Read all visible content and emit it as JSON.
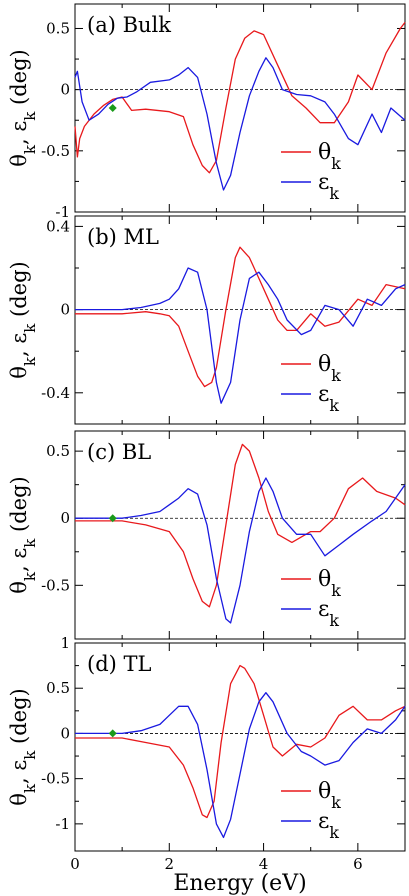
{
  "figure": {
    "xlabel": "Energy (eV)",
    "colors": {
      "theta": "#e8191c",
      "epsilon": "#1a1ae0",
      "marker": "#1a9a1a"
    }
  },
  "chart_data": [
    {
      "type": "line",
      "title": "(a)  Bulk",
      "ylabel": "θk, εk (deg)",
      "xlim": [
        0,
        7
      ],
      "ylim": [
        -1,
        0.7
      ],
      "xticks": [
        0,
        2,
        4,
        6
      ],
      "yticks": [
        -1,
        -0.5,
        0,
        0.5
      ],
      "ytick_labels": [
        "-1",
        "-0.5",
        "0",
        "0.5"
      ],
      "legend_position": "right",
      "series": [
        {
          "name": "θk",
          "color": "#e8191c",
          "x": [
            0,
            0.05,
            0.1,
            0.2,
            0.4,
            0.6,
            0.8,
            1.0,
            1.2,
            1.5,
            2.0,
            2.3,
            2.5,
            2.7,
            2.85,
            3.0,
            3.2,
            3.4,
            3.6,
            3.8,
            4.0,
            4.3,
            4.6,
            4.9,
            5.2,
            5.5,
            5.8,
            6.0,
            6.3,
            6.6,
            6.9,
            7.0
          ],
          "y": [
            -0.3,
            -0.55,
            -0.4,
            -0.3,
            -0.2,
            -0.13,
            -0.08,
            -0.06,
            -0.17,
            -0.16,
            -0.18,
            -0.22,
            -0.45,
            -0.62,
            -0.68,
            -0.58,
            -0.15,
            0.25,
            0.42,
            0.48,
            0.45,
            0.2,
            -0.05,
            -0.15,
            -0.27,
            -0.27,
            -0.1,
            0.12,
            0.0,
            0.3,
            0.5,
            0.55
          ]
        },
        {
          "name": "εk",
          "color": "#1a1ae0",
          "x": [
            0,
            0.05,
            0.15,
            0.3,
            0.5,
            0.7,
            0.9,
            1.1,
            1.3,
            1.6,
            2.0,
            2.2,
            2.4,
            2.6,
            2.8,
            3.0,
            3.15,
            3.3,
            3.5,
            3.7,
            3.9,
            4.05,
            4.2,
            4.4,
            4.7,
            5.0,
            5.3,
            5.5,
            5.8,
            6.0,
            6.3,
            6.5,
            6.7,
            7.0
          ],
          "y": [
            0.1,
            0.15,
            -0.1,
            -0.25,
            -0.2,
            -0.12,
            -0.07,
            -0.06,
            -0.02,
            0.06,
            0.08,
            0.12,
            0.18,
            0.1,
            -0.2,
            -0.6,
            -0.82,
            -0.7,
            -0.35,
            -0.05,
            0.15,
            0.26,
            0.18,
            0.0,
            -0.04,
            -0.05,
            -0.1,
            -0.2,
            -0.4,
            -0.45,
            -0.2,
            -0.35,
            -0.15,
            -0.25
          ]
        }
      ],
      "markers": [
        {
          "x": 0.8,
          "y": -0.15,
          "color": "#1a9a1a"
        }
      ]
    },
    {
      "type": "line",
      "title": "(b)  ML",
      "ylabel": "θk, εk (deg)",
      "xlim": [
        0,
        7
      ],
      "ylim": [
        -0.55,
        0.45
      ],
      "xticks": [
        0,
        2,
        4,
        6
      ],
      "yticks": [
        -0.4,
        0,
        0.4
      ],
      "ytick_labels": [
        "-0.4",
        "0",
        "0.4"
      ],
      "legend_position": "right",
      "series": [
        {
          "name": "θk",
          "color": "#e8191c",
          "x": [
            0,
            1.0,
            1.5,
            1.8,
            2.0,
            2.2,
            2.4,
            2.6,
            2.75,
            2.9,
            3.0,
            3.2,
            3.4,
            3.5,
            3.7,
            3.9,
            4.1,
            4.3,
            4.5,
            4.7,
            5.0,
            5.3,
            5.6,
            6.0,
            6.3,
            6.6,
            7.0
          ],
          "y": [
            -0.02,
            -0.02,
            -0.01,
            -0.02,
            -0.03,
            -0.08,
            -0.2,
            -0.32,
            -0.37,
            -0.35,
            -0.28,
            0.0,
            0.25,
            0.3,
            0.25,
            0.15,
            0.05,
            -0.05,
            -0.1,
            -0.1,
            -0.02,
            -0.08,
            -0.06,
            0.05,
            0.02,
            0.12,
            0.1
          ]
        },
        {
          "name": "εk",
          "color": "#1a1ae0",
          "x": [
            0,
            1.0,
            1.4,
            1.8,
            2.0,
            2.2,
            2.4,
            2.6,
            2.8,
            3.0,
            3.1,
            3.3,
            3.5,
            3.7,
            3.9,
            4.1,
            4.3,
            4.5,
            4.8,
            5.0,
            5.3,
            5.6,
            5.9,
            6.2,
            6.5,
            6.8,
            7.0
          ],
          "y": [
            0,
            0,
            0.01,
            0.03,
            0.05,
            0.1,
            0.2,
            0.18,
            0.0,
            -0.35,
            -0.45,
            -0.35,
            -0.05,
            0.15,
            0.18,
            0.12,
            0.05,
            -0.05,
            -0.12,
            -0.1,
            0.02,
            0.0,
            -0.08,
            0.05,
            0.02,
            0.1,
            0.12
          ]
        }
      ]
    },
    {
      "type": "line",
      "title": "(c)  BL",
      "ylabel": "θk, εk (deg)",
      "xlim": [
        0,
        7
      ],
      "ylim": [
        -0.9,
        0.65
      ],
      "xticks": [
        0,
        2,
        4,
        6
      ],
      "yticks": [
        -0.5,
        0,
        0.5
      ],
      "ytick_labels": [
        "-0.5",
        "0",
        "0.5"
      ],
      "legend_position": "right",
      "series": [
        {
          "name": "θk",
          "color": "#e8191c",
          "x": [
            0,
            1.0,
            1.5,
            2.0,
            2.3,
            2.5,
            2.7,
            2.85,
            3.0,
            3.2,
            3.4,
            3.55,
            3.7,
            3.9,
            4.1,
            4.3,
            4.6,
            5.0,
            5.2,
            5.5,
            5.8,
            6.1,
            6.4,
            6.8,
            7.0
          ],
          "y": [
            -0.02,
            -0.02,
            -0.05,
            -0.1,
            -0.25,
            -0.45,
            -0.62,
            -0.66,
            -0.5,
            -0.05,
            0.4,
            0.55,
            0.5,
            0.3,
            0.05,
            -0.12,
            -0.18,
            -0.1,
            -0.1,
            0.0,
            0.22,
            0.3,
            0.2,
            0.15,
            0.1
          ]
        },
        {
          "name": "εk",
          "color": "#1a1ae0",
          "x": [
            0,
            1.0,
            1.4,
            1.8,
            2.0,
            2.2,
            2.4,
            2.6,
            2.8,
            3.0,
            3.2,
            3.3,
            3.5,
            3.7,
            3.9,
            4.05,
            4.2,
            4.4,
            4.7,
            5.0,
            5.3,
            5.6,
            5.9,
            6.3,
            6.6,
            6.9,
            7.0
          ],
          "y": [
            0,
            0,
            0.02,
            0.05,
            0.1,
            0.15,
            0.22,
            0.18,
            -0.05,
            -0.45,
            -0.75,
            -0.78,
            -0.5,
            -0.1,
            0.2,
            0.3,
            0.2,
            0.0,
            -0.12,
            -0.12,
            -0.28,
            -0.2,
            -0.12,
            -0.02,
            0.05,
            0.2,
            0.25
          ]
        }
      ],
      "markers": [
        {
          "x": 0.8,
          "y": 0,
          "color": "#1a9a1a"
        }
      ]
    },
    {
      "type": "line",
      "title": "(d)  TL",
      "ylabel": "θk, εk (deg)",
      "xlim": [
        0,
        7
      ],
      "ylim": [
        -1.3,
        1.0
      ],
      "xticks": [
        0,
        2,
        4,
        6
      ],
      "yticks": [
        -1,
        -0.5,
        0,
        0.5,
        1
      ],
      "ytick_labels": [
        "-1",
        "-0.5",
        "0",
        "0.5",
        "1"
      ],
      "legend_position": "right",
      "series": [
        {
          "name": "θk",
          "color": "#e8191c",
          "x": [
            0,
            1.0,
            1.5,
            2.0,
            2.3,
            2.5,
            2.7,
            2.8,
            2.95,
            3.1,
            3.3,
            3.5,
            3.6,
            3.8,
            4.0,
            4.2,
            4.4,
            4.7,
            5.0,
            5.3,
            5.6,
            5.9,
            6.2,
            6.5,
            6.8,
            7.0
          ],
          "y": [
            -0.05,
            -0.05,
            -0.1,
            -0.15,
            -0.35,
            -0.6,
            -0.9,
            -0.93,
            -0.75,
            -0.1,
            0.55,
            0.75,
            0.72,
            0.55,
            0.2,
            -0.15,
            -0.25,
            -0.12,
            -0.15,
            -0.05,
            0.2,
            0.3,
            0.15,
            0.15,
            0.25,
            0.3
          ]
        },
        {
          "name": "εk",
          "color": "#1a1ae0",
          "x": [
            0,
            1.0,
            1.4,
            1.8,
            2.0,
            2.2,
            2.4,
            2.6,
            2.8,
            3.0,
            3.15,
            3.3,
            3.5,
            3.7,
            3.9,
            4.05,
            4.2,
            4.5,
            4.8,
            5.0,
            5.3,
            5.6,
            5.9,
            6.2,
            6.5,
            6.8,
            7.0
          ],
          "y": [
            0,
            0,
            0.03,
            0.1,
            0.2,
            0.3,
            0.3,
            0.1,
            -0.4,
            -1.0,
            -1.15,
            -0.95,
            -0.45,
            0.05,
            0.35,
            0.45,
            0.35,
            0.0,
            -0.2,
            -0.25,
            -0.35,
            -0.3,
            -0.1,
            0.05,
            0.0,
            0.15,
            0.3
          ]
        }
      ],
      "markers": [
        {
          "x": 0.8,
          "y": 0,
          "color": "#1a9a1a"
        }
      ]
    }
  ]
}
